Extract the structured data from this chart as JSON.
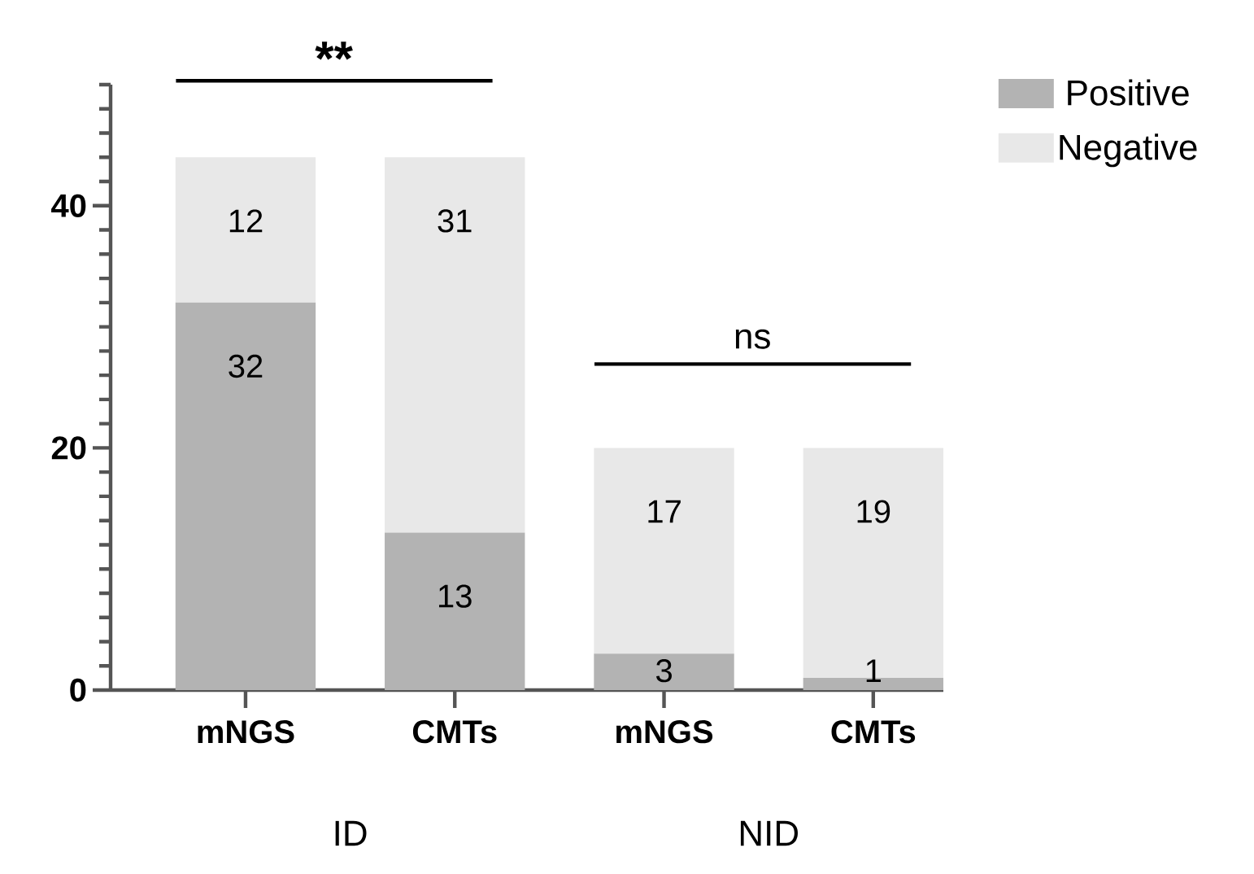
{
  "chart_data": {
    "type": "bar",
    "stacked": true,
    "categories": [
      "mNGS",
      "CMTs",
      "mNGS",
      "CMTs"
    ],
    "series": [
      {
        "name": "Positive",
        "color": "#b3b3b3",
        "values": [
          32,
          13,
          3,
          1
        ]
      },
      {
        "name": "Negative",
        "color": "#e8e8e8",
        "values": [
          12,
          31,
          17,
          19
        ]
      }
    ],
    "ylim": [
      0,
      50
    ],
    "yticks": [
      0,
      {
        "value": 2,
        "label": null
      },
      {
        "value": 4,
        "label": null
      },
      {
        "value": 6,
        "label": null
      },
      {
        "value": 8,
        "label": null
      },
      {
        "value": 10,
        "label": null
      },
      {
        "value": 12,
        "label": null
      },
      {
        "value": 14,
        "label": null
      },
      {
        "value": 16,
        "label": null
      },
      {
        "value": 18,
        "label": null
      },
      20,
      {
        "value": 22,
        "label": null
      },
      {
        "value": 24,
        "label": null
      },
      {
        "value": 26,
        "label": null
      },
      {
        "value": 28,
        "label": null
      },
      {
        "value": 30,
        "label": null
      },
      {
        "value": 32,
        "label": null
      },
      {
        "value": 34,
        "label": null
      },
      {
        "value": 36,
        "label": null
      },
      {
        "value": 38,
        "label": null
      },
      40,
      {
        "value": 42,
        "label": null
      },
      {
        "value": 44,
        "label": null
      },
      {
        "value": 46,
        "label": null
      },
      {
        "value": 48,
        "label": null
      },
      {
        "value": 50,
        "label": null
      }
    ],
    "data_labels": true,
    "legend": "top right",
    "grid": false,
    "annotations": [
      "**",
      "ns",
      "ID",
      "NID"
    ]
  }
}
